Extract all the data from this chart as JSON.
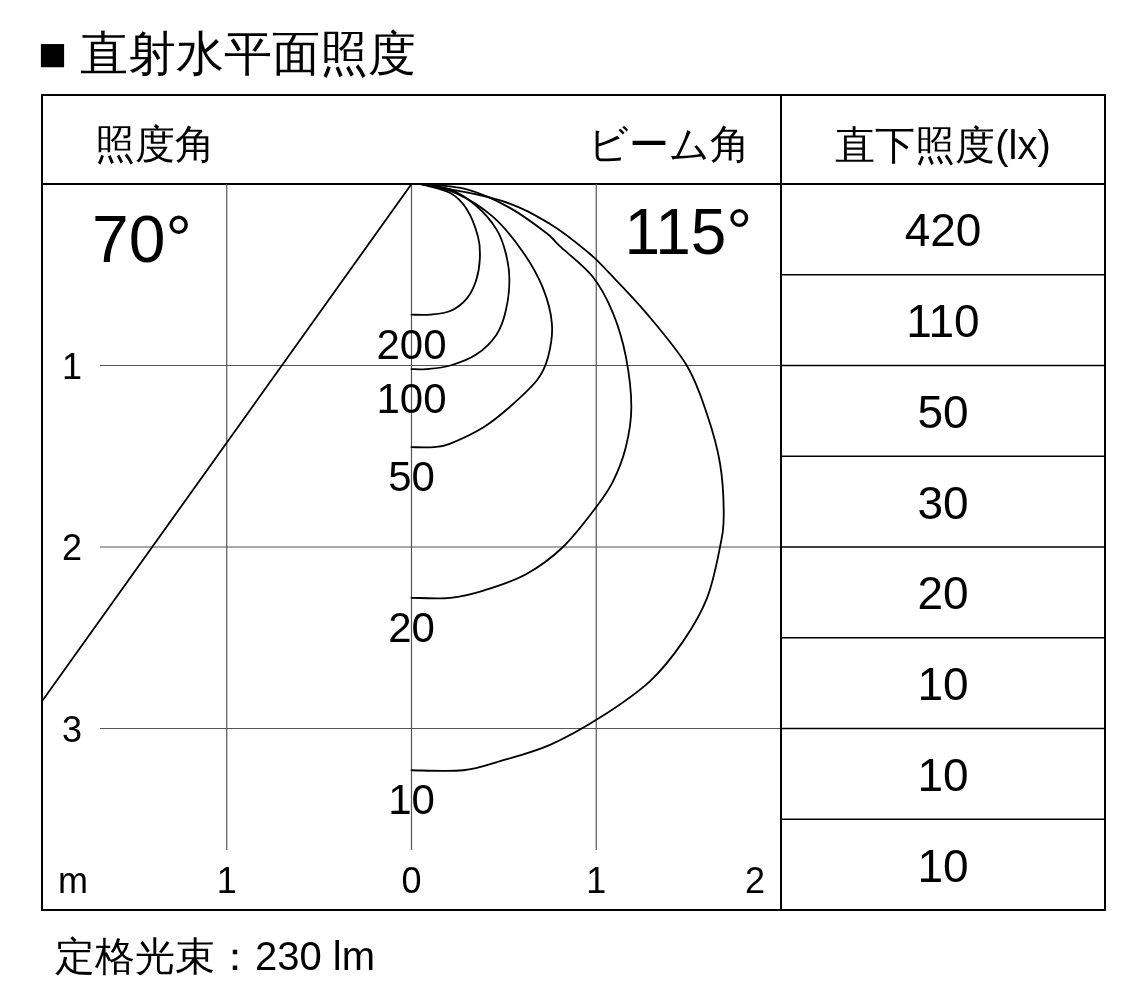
{
  "chart_data": [
    {
      "type": "line",
      "title": "■ 直射水平面照度",
      "xlabel": "m",
      "annotations": [
        "照度角",
        "ビーム角",
        "70°",
        "115°",
        "定格光束：230 lm"
      ],
      "xlim": [
        -2,
        2
      ],
      "ylim": [
        4,
        0
      ],
      "xticks": [
        {
          "value": -1,
          "label": "1"
        },
        0,
        1,
        2
      ],
      "yticks": [
        1,
        2,
        3
      ],
      "grid": true,
      "line_style": "solid",
      "series": [
        {
          "name": "200",
          "color": "#000000",
          "x": [
            0.05,
            0.21,
            0.3,
            0.36,
            0.37,
            0.35,
            0.3,
            0.21,
            0.1,
            0
          ],
          "values": [
            0,
            0.05,
            0.14,
            0.29,
            0.41,
            0.53,
            0.63,
            0.7,
            0.72,
            0.72
          ]
        },
        {
          "name": "100",
          "color": "#000000",
          "x": [
            0.05,
            0.21,
            0.35,
            0.46,
            0.51,
            0.53,
            0.51,
            0.46,
            0.35,
            0.21,
            0.08,
            0
          ],
          "values": [
            0,
            0.03,
            0.12,
            0.25,
            0.38,
            0.53,
            0.7,
            0.83,
            0.94,
            1.0,
            1.02,
            1.02
          ]
        },
        {
          "name": "50",
          "color": "#000000",
          "x": [
            0.05,
            0.24,
            0.44,
            0.6,
            0.71,
            0.76,
            0.74,
            0.68,
            0.53,
            0.39,
            0.21,
            0.12,
            0
          ],
          "values": [
            0,
            0.05,
            0.18,
            0.37,
            0.57,
            0.77,
            0.95,
            1.08,
            1.23,
            1.34,
            1.43,
            1.45,
            1.45
          ]
        },
        {
          "name": "20",
          "color": "#000000",
          "x": [
            0.05,
            0.3,
            0.53,
            0.73,
            0.8,
            0.98,
            1.09,
            1.16,
            1.19,
            1.16,
            1.09,
            1.0,
            0.82,
            0.62,
            0.39,
            0.21,
            0
          ],
          "values": [
            0,
            0.03,
            0.13,
            0.27,
            0.34,
            0.51,
            0.71,
            0.95,
            1.23,
            1.45,
            1.64,
            1.78,
            2.0,
            2.15,
            2.24,
            2.28,
            2.28
          ]
        },
        {
          "name": "10",
          "color": "#000000",
          "x": [
            0.05,
            0.48,
            0.75,
            0.96,
            1.07,
            1.27,
            1.49,
            1.6,
            1.67,
            1.69,
            1.67,
            1.6,
            1.47,
            1.29,
            1.02,
            0.75,
            0.48,
            0.28,
            0
          ],
          "values": [
            0,
            0.09,
            0.22,
            0.38,
            0.49,
            0.71,
            1.0,
            1.27,
            1.54,
            1.82,
            2.0,
            2.28,
            2.52,
            2.74,
            2.94,
            3.09,
            3.18,
            3.23,
            3.23
          ]
        },
        {
          "color": "#000000",
          "x": [
            0,
            -2
          ],
          "values": [
            0,
            2.85
          ]
        }
      ]
    },
    {
      "type": "other",
      "title": "直下照度(lx)",
      "values": [
        420,
        110,
        50,
        30,
        20,
        10,
        10,
        10
      ],
      "data_labels": true
    }
  ]
}
